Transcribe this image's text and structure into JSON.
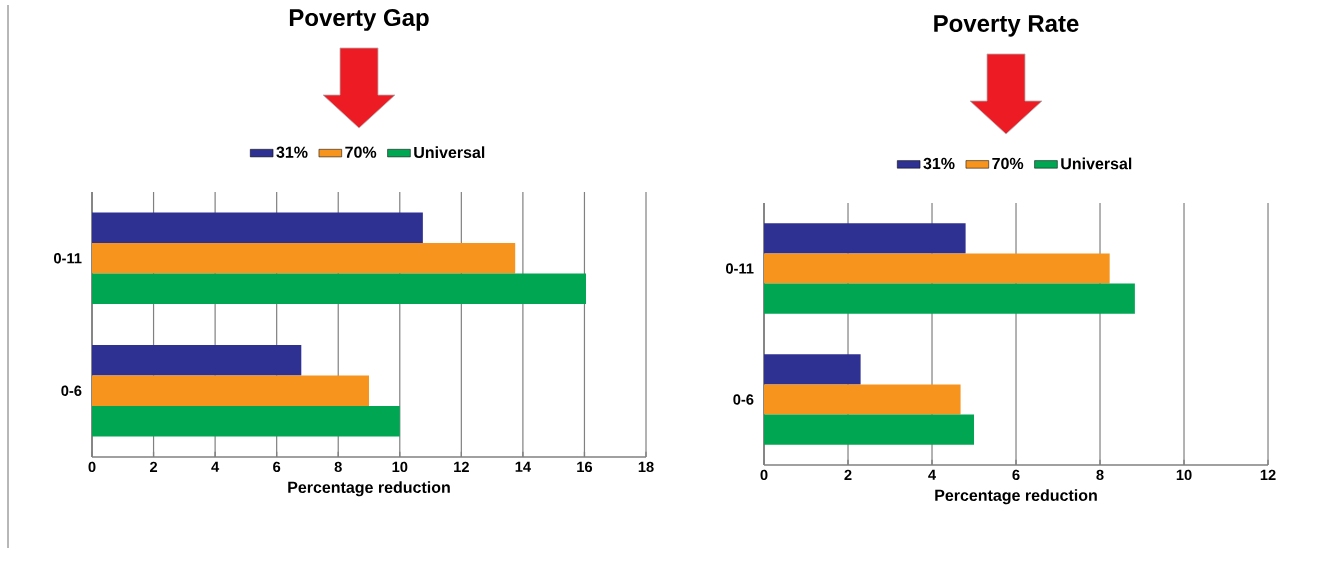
{
  "chart_data": [
    {
      "type": "bar",
      "orientation": "horizontal",
      "title": "Poverty Gap",
      "xlabel": "Percentage reduction",
      "categories": [
        "0-11",
        "0-6"
      ],
      "series": [
        {
          "name": "31%",
          "color": "#2e3192",
          "values": [
            10.75,
            6.8
          ]
        },
        {
          "name": "70%",
          "color": "#f7941d",
          "values": [
            13.75,
            9.0
          ]
        },
        {
          "name": "Universal",
          "color": "#00a651",
          "values": [
            16.05,
            10.0
          ]
        }
      ],
      "xlim": [
        0,
        18
      ],
      "xticks": [
        0,
        2,
        4,
        6,
        8,
        10,
        12,
        14,
        16,
        18
      ],
      "grid": "x",
      "legend": "top"
    },
    {
      "type": "bar",
      "orientation": "horizontal",
      "title": "Poverty Rate",
      "xlabel": "Percentage reduction",
      "categories": [
        "0-11",
        "0-6"
      ],
      "series": [
        {
          "name": "31%",
          "color": "#2e3192",
          "values": [
            4.8,
            2.3
          ]
        },
        {
          "name": "70%",
          "color": "#f7941d",
          "values": [
            8.23,
            4.68
          ]
        },
        {
          "name": "Universal",
          "color": "#00a651",
          "values": [
            8.83,
            5.0
          ]
        }
      ],
      "xlim": [
        0,
        12
      ],
      "xticks": [
        0,
        2,
        4,
        6,
        8,
        10,
        12
      ],
      "grid": "x",
      "legend": "top"
    }
  ]
}
